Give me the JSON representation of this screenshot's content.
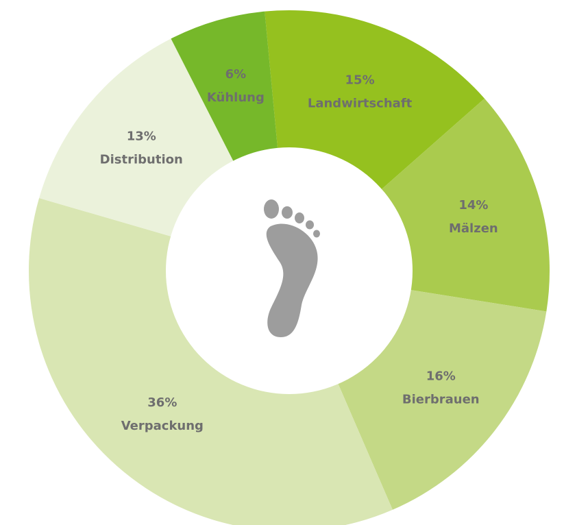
{
  "chart_data": {
    "type": "donut",
    "categories": [
      "Landwirtschaft",
      "Mälzen",
      "Bierbrauen",
      "Verpackung",
      "Distribution",
      "Kühlung"
    ],
    "values": [
      15,
      14,
      16,
      36,
      13,
      6
    ],
    "value_labels": [
      "15%",
      "14%",
      "16%",
      "36%",
      "13%",
      "6%"
    ],
    "colors": [
      "#95c11f",
      "#aacb4e",
      "#c4d986",
      "#d9e6b3",
      "#ebf2db",
      "#76b82a"
    ]
  }
}
